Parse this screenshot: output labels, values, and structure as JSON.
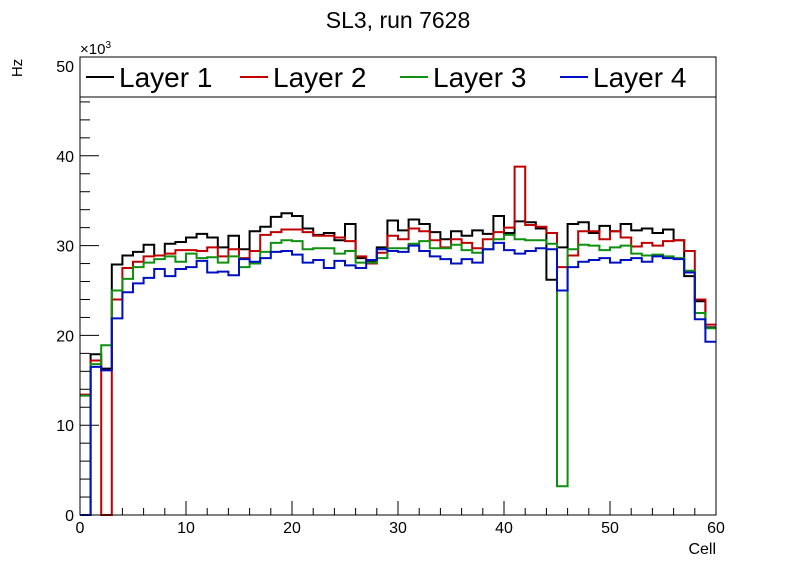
{
  "chart_data": {
    "type": "step-histogram",
    "title": "SL3, run 7628",
    "xlabel": "Cell",
    "ylabel": "Hz",
    "y_multiplier": "×10",
    "y_multiplier_exp": "3",
    "xlim": [
      0,
      60
    ],
    "ylim": [
      0,
      50
    ],
    "x_ticks": [
      0,
      10,
      20,
      30,
      40,
      50,
      60
    ],
    "y_ticks": [
      0,
      10,
      20,
      30,
      40,
      50
    ],
    "x_tick_labels": [
      "0",
      "10",
      "20",
      "30",
      "40",
      "50",
      "60"
    ],
    "y_tick_labels": [
      "0",
      "10",
      "20",
      "30",
      "40",
      "50"
    ],
    "bin_width": 1,
    "bin_start": 0,
    "legend_position": "top",
    "series": [
      {
        "name": "Layer 1",
        "color": "#000000",
        "values": [
          0,
          17.9,
          16.3,
          27.9,
          28.9,
          29.3,
          30.1,
          28.9,
          30.2,
          30.4,
          30.9,
          31.3,
          30.9,
          29.8,
          31.1,
          29.6,
          31.6,
          32.1,
          33.2,
          33.6,
          33.3,
          31.9,
          31.2,
          31.4,
          30.6,
          32.4,
          28.6,
          28.3,
          29.8,
          32.8,
          31.7,
          32.9,
          32.4,
          31.5,
          30.7,
          31.6,
          31.1,
          31.7,
          31.3,
          33.3,
          31.4,
          32.7,
          32.6,
          31.9,
          26.2,
          29.8,
          32.4,
          32.6,
          31.4,
          32.2,
          31.6,
          32.4,
          31.7,
          31.9,
          31.4,
          31.8,
          30.6,
          26.6,
          23.8,
          20.9
        ]
      },
      {
        "name": "Layer 2",
        "color": "#c00000",
        "values": [
          13.4,
          17.2,
          0,
          24.0,
          27.5,
          28.2,
          28.8,
          28.9,
          29.1,
          29.5,
          29.5,
          29.4,
          29.8,
          28.8,
          29.6,
          28.6,
          29.4,
          31.2,
          31.5,
          31.8,
          31.8,
          31.5,
          31.1,
          31.1,
          30.9,
          30.5,
          28.8,
          28.0,
          29.2,
          31.1,
          30.7,
          31.9,
          31.6,
          30.6,
          29.8,
          30.7,
          30.3,
          29.7,
          30.7,
          31.5,
          32.0,
          38.8,
          32.3,
          32.1,
          31.4,
          27.6,
          28.9,
          31.6,
          31.6,
          30.7,
          31.6,
          30.9,
          29.9,
          30.3,
          30.0,
          30.5,
          30.6,
          29.4,
          24.0,
          21.2
        ]
      },
      {
        "name": "Layer 3",
        "color": "#109010",
        "values": [
          13.3,
          16.8,
          18.9,
          25.0,
          26.3,
          27.6,
          28.1,
          28.5,
          28.8,
          28.2,
          29.1,
          28.6,
          28.7,
          28.1,
          28.8,
          27.6,
          28.0,
          29.3,
          30.3,
          30.6,
          30.5,
          29.6,
          29.7,
          29.7,
          29.1,
          29.4,
          28.1,
          28.1,
          28.6,
          29.7,
          29.7,
          30.2,
          30.5,
          29.7,
          29.7,
          30.1,
          29.5,
          29.2,
          29.6,
          30.7,
          31.2,
          30.7,
          30.6,
          30.6,
          30.2,
          3.2,
          29.6,
          30.1,
          30.0,
          29.5,
          29.8,
          30.0,
          29.1,
          28.9,
          29.0,
          28.8,
          28.6,
          27.2,
          22.5,
          20.8
        ]
      },
      {
        "name": "Layer 4",
        "color": "#0010c0",
        "values": [
          0,
          16.5,
          16.1,
          21.9,
          24.8,
          25.8,
          26.4,
          27.4,
          26.6,
          27.4,
          27.6,
          28.3,
          27.0,
          27.1,
          26.7,
          28.5,
          28.2,
          28.6,
          29.3,
          29.4,
          29.0,
          28.1,
          28.4,
          27.5,
          28.3,
          27.8,
          27.5,
          28.4,
          29.6,
          29.4,
          29.3,
          30.0,
          29.4,
          28.8,
          28.5,
          28.0,
          28.5,
          28.1,
          29.6,
          30.3,
          29.5,
          29.1,
          29.4,
          29.7,
          29.6,
          25.0,
          27.6,
          28.2,
          28.4,
          28.6,
          28.1,
          28.4,
          28.6,
          28.2,
          28.8,
          28.6,
          28.5,
          27.0,
          21.8,
          19.3
        ]
      }
    ]
  }
}
